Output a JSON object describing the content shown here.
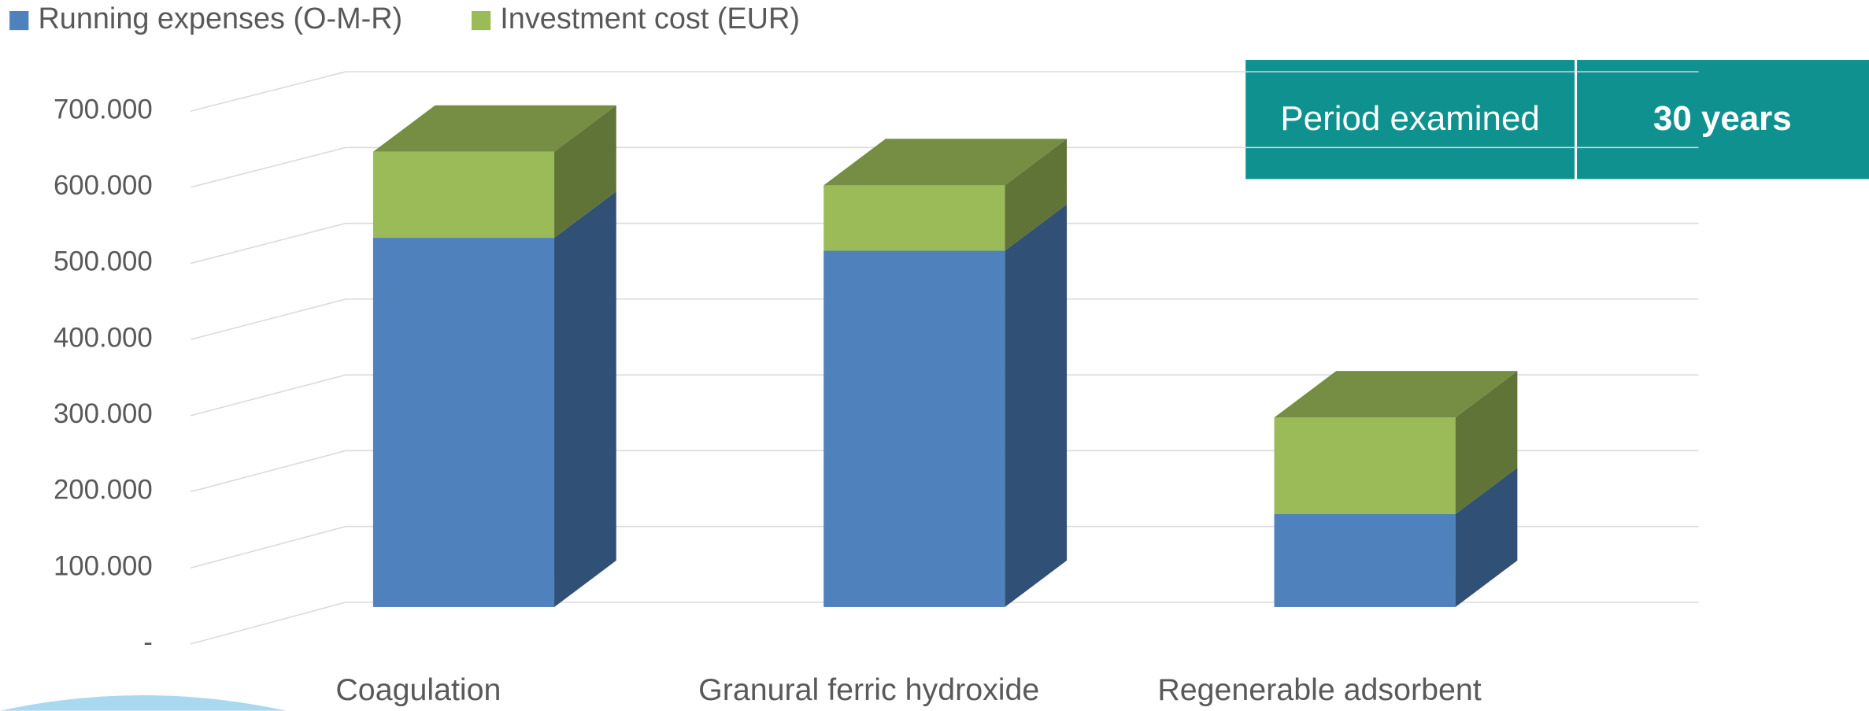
{
  "chart_data": {
    "type": "bar3d_stacked",
    "categories": [
      "Coagulation",
      "Granural ferric hydroxide",
      "Regenerable adsorbent"
    ],
    "series": [
      {
        "name": "Running expenses (O-M-R)",
        "color": "#4f81bd",
        "values": [
          485000,
          468000,
          122000
        ]
      },
      {
        "name": "Investment cost (EUR)",
        "color": "#9bbb59",
        "values": [
          113000,
          86000,
          127000
        ]
      }
    ],
    "ylim": [
      0,
      700000
    ],
    "yticks": [
      {
        "value": 0,
        "label": "-"
      },
      {
        "value": 100000,
        "label": "100.000"
      },
      {
        "value": 200000,
        "label": "200.000"
      },
      {
        "value": 300000,
        "label": "300.000"
      },
      {
        "value": 400000,
        "label": "400.000"
      },
      {
        "value": 500000,
        "label": "500.000"
      },
      {
        "value": 600000,
        "label": "600.000"
      },
      {
        "value": 700000,
        "label": "700.000"
      }
    ],
    "grid": true
  },
  "info_table": {
    "label": "Period examined",
    "value": "30 years"
  }
}
